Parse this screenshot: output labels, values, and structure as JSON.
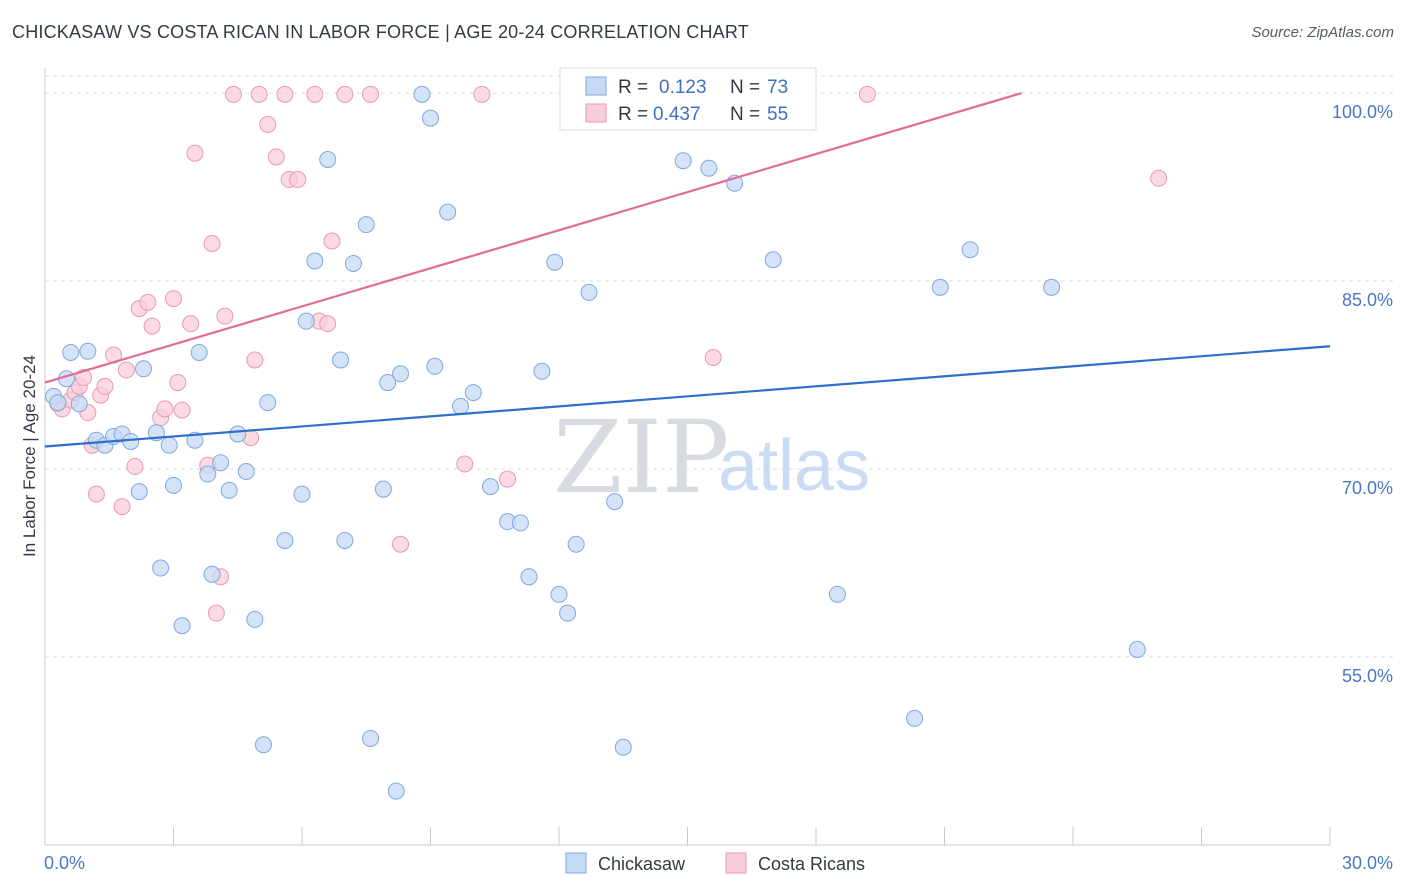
{
  "title": "CHICKASAW VS COSTA RICAN IN LABOR FORCE | AGE 20-24 CORRELATION CHART",
  "source": "Source: ZipAtlas.com",
  "watermark": {
    "part1": "ZIP",
    "part2": "atlas"
  },
  "colors": {
    "chickasaw_fill": "#c6daf5",
    "chickasaw_stroke": "#7fa8e0",
    "chickasaw_line": "#2f6fc9",
    "costa_fill": "#f9cdd9",
    "costa_stroke": "#e89ab3",
    "costa_line": "#e06d94",
    "tick_label": "#4a78c2",
    "grid": "#d8dce2"
  },
  "legend": {
    "r_label": "R =",
    "n_label": "N =",
    "items": [
      {
        "r": "0.123",
        "n": "73"
      },
      {
        "r": "0.437",
        "n": "55"
      }
    ]
  },
  "bottom_legend": {
    "items": [
      "Chickasaw",
      "Costa Ricans"
    ]
  },
  "chart_data": {
    "type": "scatter",
    "ylabel": "In Labor Force | Age 20-24",
    "xlabel": "",
    "xlim": [
      0,
      30
    ],
    "ylim": [
      40,
      102
    ],
    "y_ticks": [
      {
        "value": 100,
        "label": "100.0%"
      },
      {
        "value": 85,
        "label": "85.0%"
      },
      {
        "value": 70,
        "label": "70.0%"
      },
      {
        "value": 55,
        "label": "55.0%"
      }
    ],
    "x_tick_labels": [
      {
        "value": 0,
        "label": "0.0%"
      },
      {
        "value": 30,
        "label": "30.0%"
      }
    ],
    "grid": true,
    "legend_position": "top-center",
    "series": [
      {
        "name": "Chickasaw",
        "trend": {
          "x": [
            0,
            30
          ],
          "y": [
            71.8,
            79.8
          ]
        },
        "points": [
          [
            0.2,
            75.8
          ],
          [
            0.3,
            75.3
          ],
          [
            0.5,
            77.2
          ],
          [
            0.6,
            79.3
          ],
          [
            0.8,
            75.2
          ],
          [
            1.0,
            79.4
          ],
          [
            1.2,
            72.3
          ],
          [
            1.4,
            71.9
          ],
          [
            1.6,
            72.6
          ],
          [
            1.8,
            72.8
          ],
          [
            2.0,
            72.2
          ],
          [
            2.2,
            68.2
          ],
          [
            2.3,
            78.0
          ],
          [
            2.6,
            72.9
          ],
          [
            2.7,
            62.1
          ],
          [
            2.9,
            71.9
          ],
          [
            3.0,
            68.7
          ],
          [
            3.2,
            57.5
          ],
          [
            3.5,
            72.3
          ],
          [
            3.6,
            79.3
          ],
          [
            3.8,
            69.6
          ],
          [
            3.9,
            61.6
          ],
          [
            4.1,
            70.5
          ],
          [
            4.3,
            68.3
          ],
          [
            4.5,
            72.8
          ],
          [
            4.7,
            69.8
          ],
          [
            4.9,
            58.0
          ],
          [
            5.1,
            48.0
          ],
          [
            5.2,
            75.3
          ],
          [
            5.6,
            64.3
          ],
          [
            6.0,
            68.0
          ],
          [
            6.1,
            81.8
          ],
          [
            6.3,
            86.6
          ],
          [
            6.6,
            94.7
          ],
          [
            6.9,
            78.7
          ],
          [
            7.0,
            64.3
          ],
          [
            7.2,
            86.4
          ],
          [
            7.5,
            89.5
          ],
          [
            7.6,
            48.5
          ],
          [
            7.9,
            68.4
          ],
          [
            8.0,
            76.9
          ],
          [
            8.2,
            44.3
          ],
          [
            8.3,
            77.6
          ],
          [
            8.8,
            99.9
          ],
          [
            9.0,
            98.0
          ],
          [
            9.1,
            78.2
          ],
          [
            9.4,
            90.5
          ],
          [
            9.7,
            75.0
          ],
          [
            10.0,
            76.1
          ],
          [
            10.4,
            68.6
          ],
          [
            10.8,
            65.8
          ],
          [
            11.1,
            65.7
          ],
          [
            11.3,
            61.4
          ],
          [
            11.6,
            77.8
          ],
          [
            11.9,
            86.5
          ],
          [
            12.0,
            60.0
          ],
          [
            12.2,
            58.5
          ],
          [
            12.4,
            64.0
          ],
          [
            12.7,
            84.1
          ],
          [
            13.3,
            67.4
          ],
          [
            13.5,
            47.8
          ],
          [
            14.0,
            99.7
          ],
          [
            14.9,
            94.6
          ],
          [
            15.5,
            94.0
          ],
          [
            16.1,
            92.8
          ],
          [
            16.9,
            99.8
          ],
          [
            17.0,
            86.7
          ],
          [
            18.5,
            60.0
          ],
          [
            20.3,
            50.1
          ],
          [
            20.9,
            84.5
          ],
          [
            21.6,
            87.5
          ],
          [
            23.5,
            84.5
          ],
          [
            25.5,
            55.6
          ]
        ]
      },
      {
        "name": "Costa Ricans",
        "trend": {
          "x": [
            0,
            22.8
          ],
          "y": [
            76.9,
            100.0
          ]
        },
        "points": [
          [
            0.3,
            75.2
          ],
          [
            0.4,
            74.8
          ],
          [
            0.6,
            75.5
          ],
          [
            0.7,
            76.1
          ],
          [
            0.8,
            76.6
          ],
          [
            0.9,
            77.3
          ],
          [
            1.0,
            74.5
          ],
          [
            1.1,
            71.9
          ],
          [
            1.2,
            68.0
          ],
          [
            1.3,
            75.9
          ],
          [
            1.4,
            76.6
          ],
          [
            1.6,
            79.1
          ],
          [
            1.8,
            67.0
          ],
          [
            1.9,
            77.9
          ],
          [
            2.1,
            70.2
          ],
          [
            2.2,
            82.8
          ],
          [
            2.4,
            83.3
          ],
          [
            2.5,
            81.4
          ],
          [
            2.7,
            74.1
          ],
          [
            2.8,
            74.8
          ],
          [
            3.0,
            83.6
          ],
          [
            3.1,
            76.9
          ],
          [
            3.2,
            74.7
          ],
          [
            3.4,
            81.6
          ],
          [
            3.5,
            95.2
          ],
          [
            3.8,
            70.3
          ],
          [
            3.9,
            88.0
          ],
          [
            4.0,
            58.5
          ],
          [
            4.1,
            61.4
          ],
          [
            4.2,
            82.2
          ],
          [
            4.4,
            99.9
          ],
          [
            4.8,
            72.5
          ],
          [
            4.9,
            78.7
          ],
          [
            5.0,
            99.9
          ],
          [
            5.2,
            97.5
          ],
          [
            5.4,
            94.9
          ],
          [
            5.6,
            99.9
          ],
          [
            5.7,
            93.1
          ],
          [
            5.9,
            93.1
          ],
          [
            6.3,
            99.9
          ],
          [
            6.4,
            81.8
          ],
          [
            6.6,
            81.6
          ],
          [
            6.7,
            88.2
          ],
          [
            7.0,
            99.9
          ],
          [
            7.6,
            99.9
          ],
          [
            8.3,
            64.0
          ],
          [
            9.8,
            70.4
          ],
          [
            10.2,
            99.9
          ],
          [
            10.8,
            69.2
          ],
          [
            12.5,
            99.9
          ],
          [
            14.5,
            99.9
          ],
          [
            15.6,
            78.9
          ],
          [
            16.9,
            99.9
          ],
          [
            19.2,
            99.9
          ],
          [
            26.0,
            93.2
          ]
        ]
      }
    ]
  }
}
